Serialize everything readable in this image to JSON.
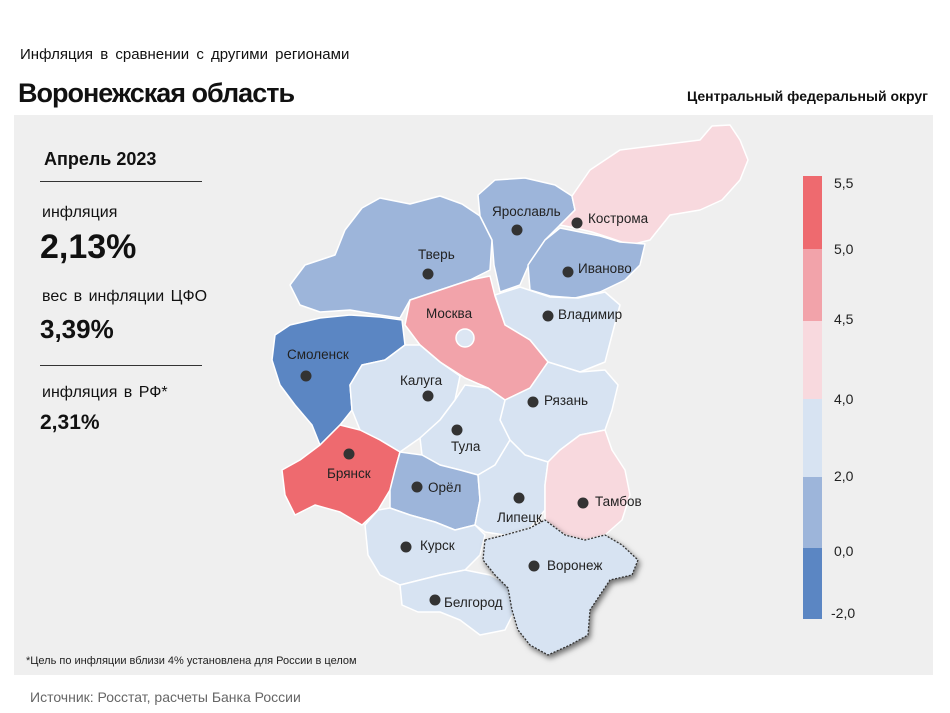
{
  "header": {
    "subtitle": "Инфляция в сравнении с другими регионами",
    "title": "Воронежская область",
    "district": "Центральный федеральный округ"
  },
  "stats": {
    "period": "Апрель 2023",
    "inflation_label": "инфляция",
    "inflation_value": "2,13%",
    "weight_label": "вес в инфляции ЦФО",
    "weight_value": "3,39%",
    "rf_label": "инфляция в РФ*",
    "rf_value": "2,31%"
  },
  "footnote": "*Цель по инфляции вблизи 4% установлена для России в целом",
  "source": "Источник: Росстат, расчеты Банка России",
  "colors": {
    "c_neg": "#5b86c3",
    "c_0_2": "#9db5da",
    "c_2_4": "#d7e3f2",
    "c_4_45": "#f8d9de",
    "c_45_5": "#f2a3aa",
    "c_5_55": "#ee6a6f",
    "border": "#ffffff"
  },
  "legend": {
    "ticks": [
      "5,5",
      "5,0",
      "4,5",
      "4,0",
      "2,0",
      "0,0",
      "-2,0"
    ]
  },
  "regions": [
    {
      "id": "tver",
      "name": "Тверь"
    },
    {
      "id": "yaroslavl",
      "name": "Ярославль"
    },
    {
      "id": "kostroma",
      "name": "Кострома"
    },
    {
      "id": "ivanovo",
      "name": "Иваново"
    },
    {
      "id": "vladimir",
      "name": "Владимир"
    },
    {
      "id": "moskva",
      "name": "Москва"
    },
    {
      "id": "smolensk",
      "name": "Смоленск"
    },
    {
      "id": "kaluga",
      "name": "Калуга"
    },
    {
      "id": "ryazan",
      "name": "Рязань"
    },
    {
      "id": "tula",
      "name": "Тула"
    },
    {
      "id": "bryansk",
      "name": "Брянск"
    },
    {
      "id": "orel",
      "name": "Орёл"
    },
    {
      "id": "lipetsk",
      "name": "Липецк"
    },
    {
      "id": "tambov",
      "name": "Тамбов"
    },
    {
      "id": "kursk",
      "name": "Курск"
    },
    {
      "id": "voronezh",
      "name": "Воронеж"
    },
    {
      "id": "belgorod",
      "name": "Белгород"
    }
  ]
}
